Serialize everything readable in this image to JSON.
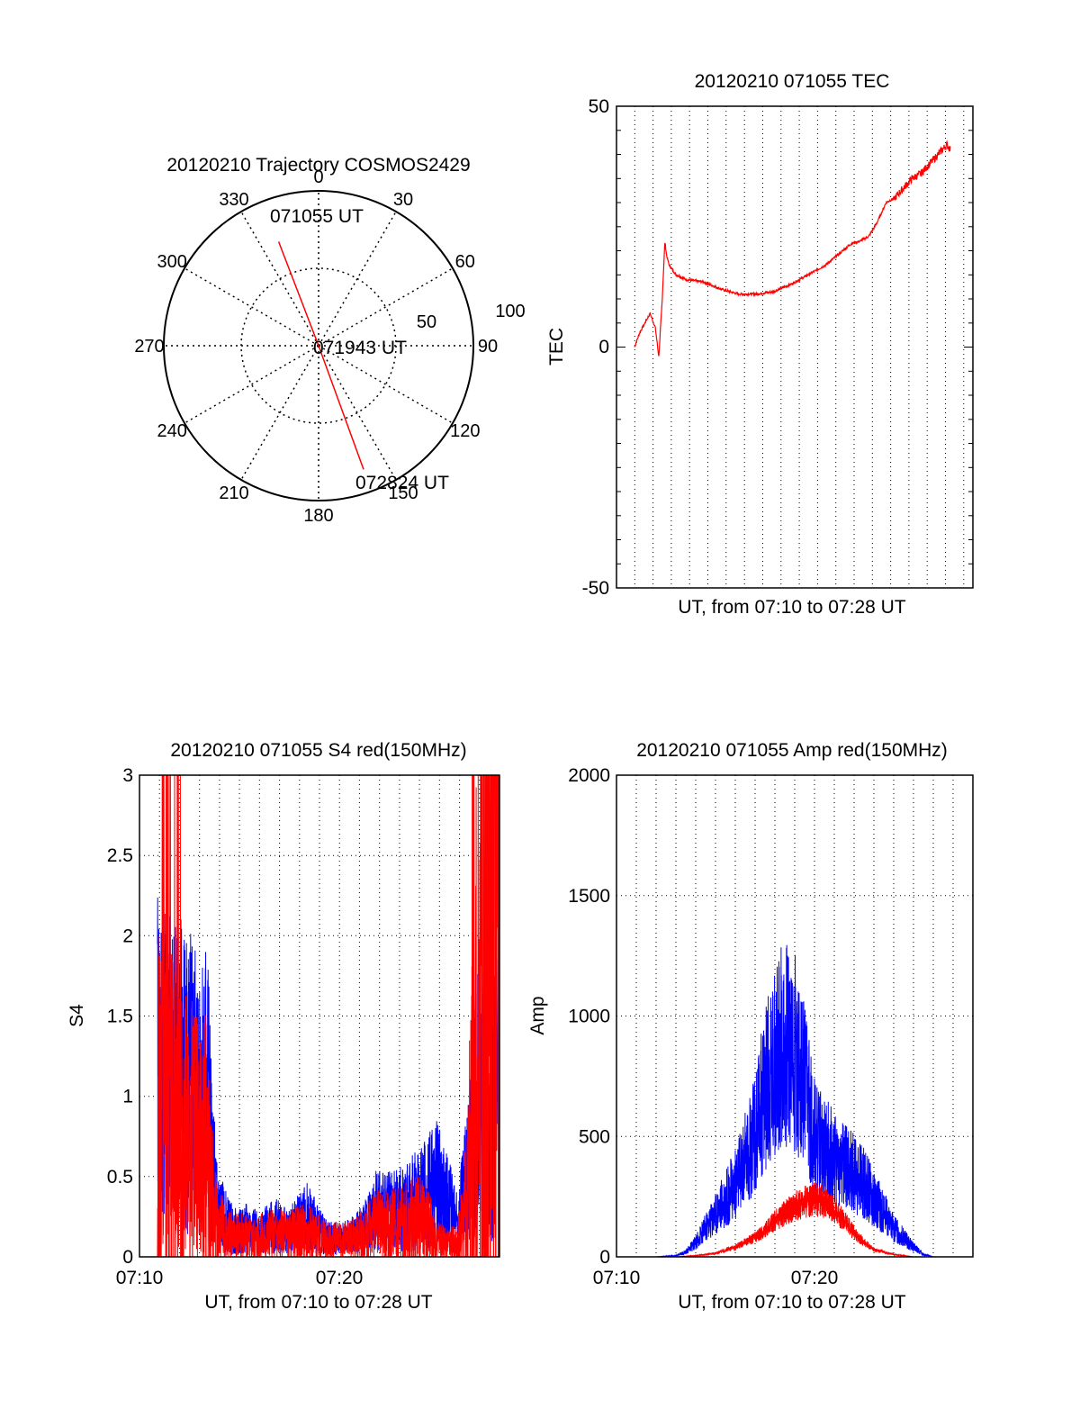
{
  "colors": {
    "red": "#ff0000",
    "blue": "#0000ff",
    "axis": "#000000",
    "grid": "#000000"
  },
  "chart_data": [
    {
      "type": "polar",
      "title": "20120210 Trajectory COSMOS2429",
      "angle_labels": [
        "0",
        "30",
        "60",
        "90",
        "120",
        "150",
        "180",
        "210",
        "240",
        "270",
        "300",
        "330"
      ],
      "radius_labels": [
        "50",
        "100"
      ],
      "radius_range": [
        0,
        100
      ],
      "grid": true,
      "series": [
        {
          "color": "red",
          "points": [
            {
              "azimuth": 339,
              "radius": 72
            },
            {
              "azimuth": 0,
              "radius": 0
            },
            {
              "azimuth": 160,
              "radius": 85
            }
          ]
        }
      ],
      "annotations": [
        "071055 UT",
        "071943 UT",
        "072824 UT"
      ]
    },
    {
      "type": "line",
      "title": "20120210 071055 TEC",
      "ylabel": "TEC",
      "xlabel": "UT, from 07:10 to 07:28 UT",
      "ylim": [
        -50,
        50
      ],
      "yticks": [
        "50",
        "0",
        "-50"
      ],
      "grid": "vertical dotted",
      "series": [
        {
          "color": "red",
          "x": [
            0.0,
            0.3,
            0.6,
            0.9,
            1.2,
            1.4,
            1.6,
            1.75,
            1.85,
            2.0,
            2.2,
            2.4,
            3.0,
            4.0,
            5.0,
            6.0,
            7.0,
            8.0,
            9.0,
            10.0,
            11.0,
            12.0,
            12.5,
            13.0,
            13.5,
            14.0,
            14.5,
            15.0,
            15.5,
            16.0,
            16.5,
            17.0,
            17.5,
            18.0,
            18.2
          ],
          "y": [
            0,
            3,
            5,
            7,
            4,
            -2,
            10,
            22,
            19,
            17,
            16,
            15,
            14,
            13.5,
            12,
            11,
            11,
            11.5,
            13,
            15,
            17,
            20,
            21.5,
            22,
            23,
            26,
            30,
            31,
            33,
            35,
            36,
            38,
            40,
            42,
            41
          ]
        }
      ]
    },
    {
      "type": "line",
      "title": "20120210 071055 S4 red(150MHz)",
      "ylabel": "S4",
      "xlabel": "UT, from 07:10 to 07:28 UT",
      "ylim": [
        0,
        3
      ],
      "yticks": [
        "0",
        "0.5",
        "1",
        "1.5",
        "2",
        "2.5",
        "3"
      ],
      "xticks": [
        "07:10",
        "07:20"
      ],
      "grid": true,
      "series": [
        {
          "color": "blue",
          "noise": 0.9,
          "x": [
            0.0,
            0.5,
            1.0,
            1.5,
            2.0,
            2.5,
            2.7,
            3.0,
            3.5,
            4.0,
            4.5,
            5.0,
            5.5,
            6.0,
            6.5,
            7.0,
            7.5,
            8.0,
            8.5,
            9.0,
            9.5,
            10.0,
            10.5,
            11.0,
            11.5,
            12.0,
            12.5,
            13.0,
            13.5,
            14.0,
            14.5,
            15.0,
            15.5,
            16.0,
            16.5,
            17.0,
            17.5,
            18.0
          ],
          "y": [
            1.2,
            1.1,
            1.2,
            1.1,
            1.0,
            1.1,
            0.6,
            0.3,
            0.2,
            0.15,
            0.18,
            0.15,
            0.17,
            0.2,
            0.15,
            0.2,
            0.25,
            0.18,
            0.12,
            0.11,
            0.12,
            0.15,
            0.2,
            0.3,
            0.28,
            0.3,
            0.32,
            0.35,
            0.4,
            0.45,
            0.35,
            0.2,
            0.5,
            0.95,
            0.85,
            1.0,
            0.9,
            0.95
          ]
        },
        {
          "color": "red",
          "noise": 1.2,
          "x": [
            0.0,
            0.5,
            1.0,
            1.5,
            2.0,
            2.5,
            2.7,
            3.0,
            3.5,
            4.0,
            4.5,
            5.0,
            5.5,
            6.0,
            6.5,
            7.0,
            7.5,
            8.0,
            8.5,
            9.0,
            9.5,
            10.0,
            10.5,
            11.0,
            11.5,
            12.0,
            12.5,
            13.0,
            13.5,
            14.0,
            14.5,
            15.0,
            15.5,
            16.0,
            16.5,
            17.0,
            17.5,
            18.0
          ],
          "y": [
            1.0,
            0.9,
            0.8,
            0.8,
            0.7,
            0.7,
            0.4,
            0.2,
            0.15,
            0.12,
            0.13,
            0.12,
            0.13,
            0.15,
            0.12,
            0.15,
            0.15,
            0.13,
            0.1,
            0.1,
            0.1,
            0.12,
            0.15,
            0.2,
            0.2,
            0.2,
            0.22,
            0.25,
            0.2,
            0.1,
            0.08,
            0.1,
            0.4,
            1.5,
            2.5,
            2.2,
            2.0,
            2.2
          ]
        }
      ]
    },
    {
      "type": "line",
      "title": "20120210 071055 Amp red(150MHz)",
      "ylabel": "Amp",
      "xlabel": "UT, from 07:10 to 07:28 UT",
      "ylim": [
        0,
        2000
      ],
      "yticks": [
        "0",
        "500",
        "1000",
        "1500",
        "2000"
      ],
      "xticks": [
        "07:10",
        "07:20"
      ],
      "grid": true,
      "series": [
        {
          "color": "blue",
          "noise": 0.5,
          "x": [
            0.0,
            2.0,
            3.0,
            3.5,
            4.0,
            5.0,
            6.0,
            7.0,
            7.5,
            8.0,
            8.5,
            9.0,
            9.5,
            10.0,
            10.5,
            11.0,
            11.5,
            12.0,
            12.5,
            13.0,
            14.0,
            14.5,
            15.0,
            15.5,
            16.0,
            17.0,
            18.0
          ],
          "y": [
            0,
            0,
            5,
            20,
            60,
            180,
            300,
            500,
            700,
            800,
            900,
            850,
            700,
            500,
            450,
            400,
            380,
            350,
            300,
            250,
            120,
            80,
            40,
            10,
            0,
            0,
            0
          ]
        },
        {
          "color": "red",
          "noise": 0.3,
          "x": [
            0.0,
            3.0,
            4.0,
            5.0,
            6.0,
            6.5,
            7.0,
            7.5,
            8.0,
            8.5,
            9.0,
            9.5,
            10.0,
            10.5,
            11.0,
            11.5,
            12.0,
            12.5,
            13.0,
            14.0,
            15.0,
            18.0
          ],
          "y": [
            0,
            0,
            5,
            15,
            40,
            60,
            80,
            110,
            150,
            180,
            210,
            230,
            240,
            230,
            200,
            150,
            100,
            60,
            30,
            10,
            0,
            0
          ]
        }
      ]
    }
  ]
}
